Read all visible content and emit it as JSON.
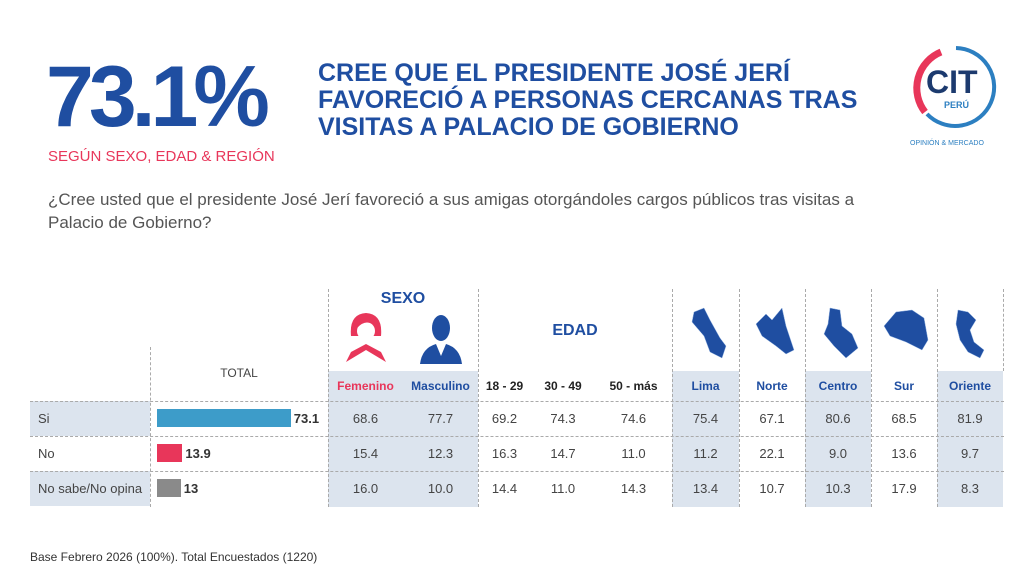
{
  "headline": {
    "percent": "73.1%",
    "subtitle": "SEGÚN SEXO, EDAD & REGIÓN",
    "title": "CREE QUE EL PRESIDENTE JOSÉ JERÍ FAVORECIÓ A PERSONAS CERCANAS TRAS VISITAS A PALACIO DE GOBIERNO"
  },
  "question": "¿Cree usted que el presidente José Jerí favoreció a sus amigas otorgándoles cargos públicos tras visitas a Palacio de Gobierno?",
  "logo": {
    "text": "CIT",
    "sub": "PERÚ",
    "tagline": "OPINIÓN & MERCADO"
  },
  "footer": "Base Febrero 2026  (100%). Total Encuestados (1220)",
  "colors": {
    "primary": "#1f4ea1",
    "female": "#e8365a",
    "si": "#3d9cc9",
    "no": "#e8365a",
    "ns": "#8a8a8a",
    "shade": "#dce4ee"
  },
  "chart_data": {
    "type": "table",
    "total_label": "TOTAL",
    "groups": [
      {
        "label": "SEXO",
        "icons": [
          "female-icon",
          "male-icon"
        ]
      },
      {
        "label": "EDAD"
      },
      {
        "label": "",
        "icons": [
          "lima-map-icon",
          "norte-map-icon",
          "centro-map-icon",
          "sur-map-icon",
          "oriente-map-icon"
        ]
      }
    ],
    "columns": [
      "Femenino",
      "Masculino",
      "18 - 29",
      "30 - 49",
      "50 - más",
      "Lima",
      "Norte",
      "Centro",
      "Sur",
      "Oriente"
    ],
    "rows": [
      {
        "label": "Si",
        "total": "73.1",
        "values": [
          "68.6",
          "77.7",
          "69.2",
          "74.3",
          "74.6",
          "75.4",
          "67.1",
          "80.6",
          "68.5",
          "81.9"
        ]
      },
      {
        "label": "No",
        "total": "13.9",
        "values": [
          "15.4",
          "12.3",
          "16.3",
          "14.7",
          "11.0",
          "11.2",
          "22.1",
          "9.0",
          "13.6",
          "9.7"
        ]
      },
      {
        "label": "No sabe/No opina",
        "total": "13",
        "values": [
          "16.0",
          "10.0",
          "14.4",
          "11.0",
          "14.3",
          "13.4",
          "10.7",
          "10.3",
          "17.9",
          "8.3"
        ]
      }
    ]
  }
}
